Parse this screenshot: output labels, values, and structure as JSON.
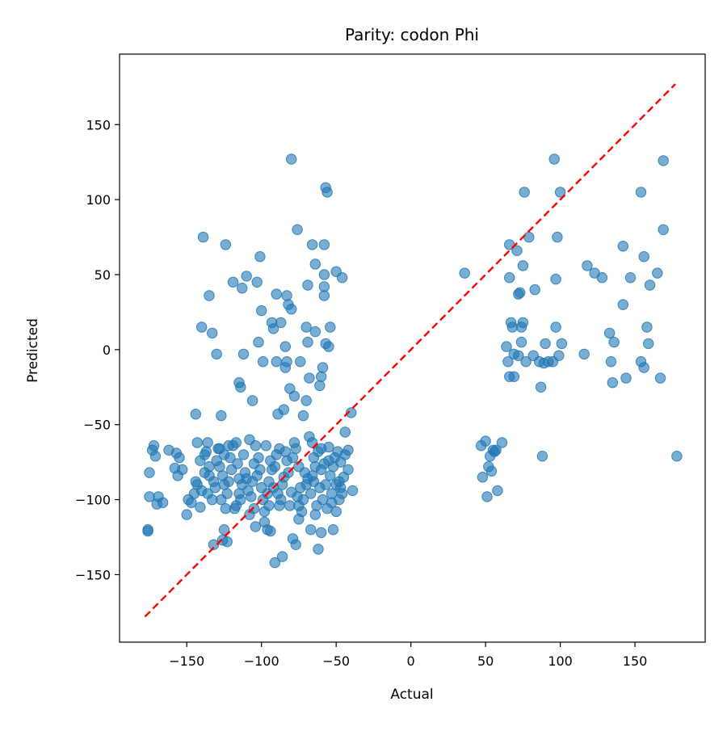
{
  "chart_data": {
    "type": "scatter",
    "title": "Parity: codon Phi",
    "xlabel": "Actual",
    "ylabel": "Predicted",
    "xlim": [
      -195,
      197
    ],
    "ylim": [
      -195,
      197
    ],
    "xticks": [
      -150,
      -100,
      -50,
      0,
      50,
      100,
      150
    ],
    "yticks": [
      -150,
      -100,
      -50,
      0,
      50,
      100,
      150
    ],
    "grid": false,
    "colors": {
      "points": "#1f77b4",
      "reference_line": "#ff0000"
    },
    "reference_line": {
      "style": "dashed",
      "from": [
        -178,
        -178
      ],
      "to": [
        177,
        177
      ]
    },
    "series": [
      {
        "marker": "circle",
        "alpha": 0.6,
        "points": [
          [
            -176,
            -120
          ],
          [
            -176,
            -121
          ],
          [
            -175,
            -98
          ],
          [
            -175,
            -82
          ],
          [
            -173,
            -67
          ],
          [
            -172,
            -64
          ],
          [
            -171,
            -71
          ],
          [
            -170,
            -103
          ],
          [
            -169,
            -98
          ],
          [
            -166,
            -102
          ],
          [
            -162,
            -67
          ],
          [
            -158,
            -79
          ],
          [
            -157,
            -69
          ],
          [
            -156,
            -84
          ],
          [
            -155,
            -72
          ],
          [
            -153,
            -80
          ],
          [
            -150,
            -110
          ],
          [
            -149,
            -100
          ],
          [
            -147,
            -102
          ],
          [
            -145,
            -96
          ],
          [
            -144,
            -88
          ],
          [
            -144,
            -43
          ],
          [
            -143,
            -62
          ],
          [
            -141,
            -105
          ],
          [
            -140,
            15
          ],
          [
            -139,
            75
          ],
          [
            -138,
            -70
          ],
          [
            -137,
            -68
          ],
          [
            -136,
            -62
          ],
          [
            -135,
            36
          ],
          [
            -133,
            11
          ],
          [
            -132,
            -130
          ],
          [
            -130,
            -3
          ],
          [
            -128,
            -66
          ],
          [
            -127,
            -44
          ],
          [
            -126,
            -127
          ],
          [
            -125,
            -120
          ],
          [
            -124,
            70
          ],
          [
            -123,
            -128
          ],
          [
            -122,
            -64
          ],
          [
            -119,
            45
          ],
          [
            -117,
            -62
          ],
          [
            -115,
            -22
          ],
          [
            -114,
            -25
          ],
          [
            -113,
            41
          ],
          [
            -112,
            -3
          ],
          [
            -110,
            49
          ],
          [
            -108,
            -60
          ],
          [
            -106,
            -34
          ],
          [
            -104,
            -118
          ],
          [
            -103,
            45
          ],
          [
            -102,
            5
          ],
          [
            -101,
            62
          ],
          [
            -100,
            26
          ],
          [
            -99,
            -8
          ],
          [
            -98,
            -115
          ],
          [
            -96,
            -120
          ],
          [
            -94,
            -121
          ],
          [
            -93,
            18
          ],
          [
            -92,
            14
          ],
          [
            -91,
            -142
          ],
          [
            -90,
            37
          ],
          [
            -90,
            -8
          ],
          [
            -89,
            -43
          ],
          [
            -88,
            -66
          ],
          [
            -87,
            18
          ],
          [
            -86,
            -138
          ],
          [
            -85,
            -40
          ],
          [
            -84,
            2
          ],
          [
            -84,
            -12
          ],
          [
            -83,
            36
          ],
          [
            -83,
            -8
          ],
          [
            -82,
            30
          ],
          [
            -81,
            -26
          ],
          [
            -80,
            27
          ],
          [
            -80,
            127
          ],
          [
            -79,
            -126
          ],
          [
            -78,
            -31
          ],
          [
            -77,
            -130
          ],
          [
            -76,
            80
          ],
          [
            -75,
            -113
          ],
          [
            -74,
            -8
          ],
          [
            -72,
            -44
          ],
          [
            -70,
            -34
          ],
          [
            -70,
            15
          ],
          [
            -69,
            5
          ],
          [
            -69,
            43
          ],
          [
            -68,
            -19
          ],
          [
            -67,
            -120
          ],
          [
            -66,
            70
          ],
          [
            -65,
            -88
          ],
          [
            -64,
            12
          ],
          [
            -64,
            57
          ],
          [
            -62,
            -133
          ],
          [
            -61,
            -24
          ],
          [
            -60,
            -18
          ],
          [
            -60,
            -122
          ],
          [
            -59,
            -12
          ],
          [
            -58,
            50
          ],
          [
            -58,
            42
          ],
          [
            -58,
            36
          ],
          [
            -58,
            70
          ],
          [
            -57,
            108
          ],
          [
            -57,
            4
          ],
          [
            -56,
            105
          ],
          [
            -55,
            2
          ],
          [
            -54,
            15
          ],
          [
            -53,
            -102
          ],
          [
            -52,
            -120
          ],
          [
            -50,
            -108
          ],
          [
            -50,
            52
          ],
          [
            -48,
            -100
          ],
          [
            -46,
            48
          ],
          [
            -44,
            -55
          ],
          [
            -42,
            -67
          ],
          [
            -40,
            -42
          ],
          [
            -39,
            -94
          ],
          [
            -45,
            -85
          ],
          [
            -47,
            -75
          ],
          [
            -55,
            -65
          ],
          [
            -60,
            -80
          ],
          [
            -65,
            -72
          ],
          [
            -70,
            -90
          ],
          [
            -75,
            -78
          ],
          [
            -80,
            -95
          ],
          [
            -85,
            -85
          ],
          [
            -90,
            -70
          ],
          [
            -95,
            -88
          ],
          [
            -100,
            -92
          ],
          [
            -105,
            -76
          ],
          [
            -110,
            -86
          ],
          [
            -115,
            -96
          ],
          [
            -120,
            -80
          ],
          [
            -125,
            -90
          ],
          [
            -130,
            -74
          ],
          [
            -135,
            -84
          ],
          [
            -140,
            -94
          ],
          [
            -62,
            -68
          ],
          [
            -67,
            -96
          ],
          [
            -72,
            -100
          ],
          [
            -77,
            -66
          ],
          [
            -82,
            -82
          ],
          [
            -87,
            -100
          ],
          [
            -92,
            -92
          ],
          [
            -97,
            -64
          ],
          [
            -102,
            -72
          ],
          [
            -107,
            -98
          ],
          [
            -112,
            -70
          ],
          [
            -117,
            -104
          ],
          [
            -122,
            -88
          ],
          [
            -127,
            -100
          ],
          [
            -132,
            -88
          ],
          [
            -52,
            -78
          ],
          [
            -57,
            -90
          ],
          [
            -48,
            -88
          ],
          [
            -63,
            -104
          ],
          [
            -68,
            -58
          ],
          [
            -78,
            -62
          ],
          [
            -88,
            -104
          ],
          [
            -98,
            -108
          ],
          [
            -108,
            -110
          ],
          [
            -118,
            -106
          ],
          [
            -128,
            -78
          ],
          [
            -138,
            -82
          ],
          [
            -53,
            -96
          ],
          [
            -58,
            -76
          ],
          [
            -66,
            -84
          ],
          [
            -74,
            -92
          ],
          [
            -83,
            -74
          ],
          [
            -93,
            -80
          ],
          [
            -103,
            -84
          ],
          [
            -113,
            -90
          ],
          [
            -123,
            -96
          ],
          [
            -133,
            -100
          ],
          [
            -143,
            -90
          ],
          [
            -46,
            -96
          ],
          [
            -49,
            -68
          ],
          [
            -56,
            -106
          ],
          [
            -64,
            -110
          ],
          [
            -73,
            -108
          ],
          [
            -81,
            -104
          ],
          [
            -89,
            -96
          ],
          [
            -99,
            -100
          ],
          [
            -109,
            -94
          ],
          [
            -119,
            -64
          ],
          [
            -129,
            -66
          ],
          [
            -51,
            -72
          ],
          [
            -61,
            -92
          ],
          [
            -71,
            -82
          ],
          [
            -79,
            -72
          ],
          [
            -91,
            -78
          ],
          [
            -101,
            -80
          ],
          [
            -111,
            -82
          ],
          [
            -121,
            -72
          ],
          [
            -131,
            -92
          ],
          [
            -141,
            -74
          ],
          [
            -47,
            -92
          ],
          [
            -54,
            -84
          ],
          [
            -59,
            -100
          ],
          [
            -69,
            -86
          ],
          [
            -76,
            -98
          ],
          [
            -86,
            -90
          ],
          [
            -96,
            -96
          ],
          [
            -106,
            -88
          ],
          [
            -116,
            -76
          ],
          [
            -126,
            -84
          ],
          [
            -136,
            -96
          ],
          [
            -42,
            -80
          ],
          [
            -44,
            -70
          ],
          [
            -60,
            -66
          ],
          [
            -64,
            -78
          ],
          [
            -84,
            -68
          ],
          [
            -94,
            -74
          ],
          [
            -104,
            -64
          ],
          [
            -114,
            -100
          ],
          [
            -124,
            -106
          ],
          [
            -50,
            -90
          ],
          [
            -55,
            -74
          ],
          [
            -66,
            -62
          ],
          [
            -75,
            -104
          ],
          [
            -95,
            -104
          ],
          [
            -105,
            -106
          ],
          [
            -115,
            -86
          ],
          [
            -125,
            -70
          ],
          [
            -135,
            -78
          ],
          [
            36,
            51
          ],
          [
            47,
            -64
          ],
          [
            48,
            -85
          ],
          [
            50,
            -61
          ],
          [
            51,
            -98
          ],
          [
            52,
            -78
          ],
          [
            53,
            -71
          ],
          [
            54,
            -81
          ],
          [
            55,
            -67
          ],
          [
            56,
            -68
          ],
          [
            57,
            -67
          ],
          [
            58,
            -94
          ],
          [
            61,
            -62
          ],
          [
            64,
            2
          ],
          [
            65,
            -8
          ],
          [
            66,
            -18
          ],
          [
            66,
            48
          ],
          [
            66,
            70
          ],
          [
            67,
            18
          ],
          [
            68,
            15
          ],
          [
            69,
            -3
          ],
          [
            69,
            -18
          ],
          [
            71,
            66
          ],
          [
            72,
            -4
          ],
          [
            72,
            37
          ],
          [
            73,
            38
          ],
          [
            74,
            15
          ],
          [
            74,
            5
          ],
          [
            75,
            56
          ],
          [
            75,
            18
          ],
          [
            76,
            105
          ],
          [
            77,
            -8
          ],
          [
            79,
            75
          ],
          [
            82,
            -4
          ],
          [
            83,
            40
          ],
          [
            86,
            -8
          ],
          [
            87,
            -25
          ],
          [
            88,
            -71
          ],
          [
            89,
            -9
          ],
          [
            90,
            4
          ],
          [
            92,
            -8
          ],
          [
            95,
            -8
          ],
          [
            96,
            127
          ],
          [
            97,
            15
          ],
          [
            97,
            47
          ],
          [
            98,
            75
          ],
          [
            99,
            -4
          ],
          [
            100,
            105
          ],
          [
            101,
            4
          ],
          [
            116,
            -3
          ],
          [
            118,
            56
          ],
          [
            123,
            51
          ],
          [
            128,
            48
          ],
          [
            133,
            11
          ],
          [
            134,
            -8
          ],
          [
            135,
            -22
          ],
          [
            136,
            5
          ],
          [
            142,
            30
          ],
          [
            142,
            69
          ],
          [
            144,
            -19
          ],
          [
            147,
            48
          ],
          [
            154,
            105
          ],
          [
            154,
            -8
          ],
          [
            156,
            62
          ],
          [
            156,
            -12
          ],
          [
            158,
            15
          ],
          [
            159,
            4
          ],
          [
            160,
            43
          ],
          [
            165,
            51
          ],
          [
            167,
            -19
          ],
          [
            169,
            126
          ],
          [
            169,
            80
          ],
          [
            178,
            -71
          ]
        ]
      }
    ]
  }
}
